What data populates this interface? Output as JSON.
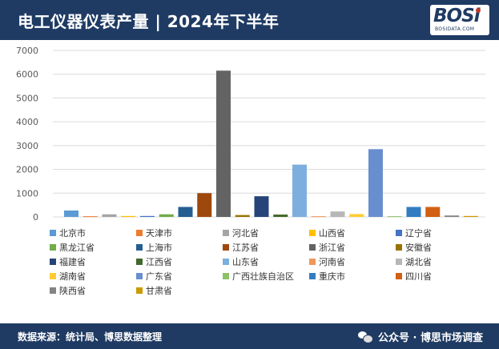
{
  "header": {
    "title": "电工仪器仪表产量 | 2024年下半年",
    "logo_text": "BOSi",
    "logo_sub": "BOSIDATA.COM"
  },
  "footer": {
    "source": "数据来源：统计局、博思数据整理",
    "account": "公众号 · 博思市场调查"
  },
  "colors": {
    "header_bg": "#1f3b63",
    "axis_text": "#595959",
    "grid": "#d9d9d9"
  },
  "chart_data": {
    "type": "bar",
    "title": "",
    "xlabel": "",
    "ylabel": "",
    "ylim": [
      0,
      7000
    ],
    "yticks": [
      0,
      1000,
      2000,
      3000,
      4000,
      5000,
      6000,
      7000
    ],
    "grid": "horizontal",
    "legend_position": "bottom",
    "categories": [
      "北京市",
      "天津市",
      "河北省",
      "山西省",
      "辽宁省",
      "黑龙江省",
      "上海市",
      "江苏省",
      "浙江省",
      "安徽省",
      "福建省",
      "江西省",
      "山东省",
      "河南省",
      "湖北省",
      "湖南省",
      "广东省",
      "广西壮族自治区",
      "重庆市",
      "四川省",
      "陕西省",
      "甘肃省"
    ],
    "values": [
      270,
      30,
      110,
      40,
      40,
      110,
      420,
      1000,
      6150,
      80,
      870,
      100,
      2200,
      30,
      230,
      120,
      2850,
      30,
      420,
      420,
      60,
      40
    ],
    "colors": [
      "#5b9bd5",
      "#ed7d31",
      "#a5a5a5",
      "#ffc000",
      "#4472c4",
      "#70ad47",
      "#255e91",
      "#9e480e",
      "#636363",
      "#997300",
      "#264478",
      "#43682b",
      "#7cafdd",
      "#f1975a",
      "#b7b7b7",
      "#ffcd33",
      "#698ed0",
      "#8cc168",
      "#327dc2",
      "#d26012",
      "#848484",
      "#cc9a00"
    ]
  }
}
